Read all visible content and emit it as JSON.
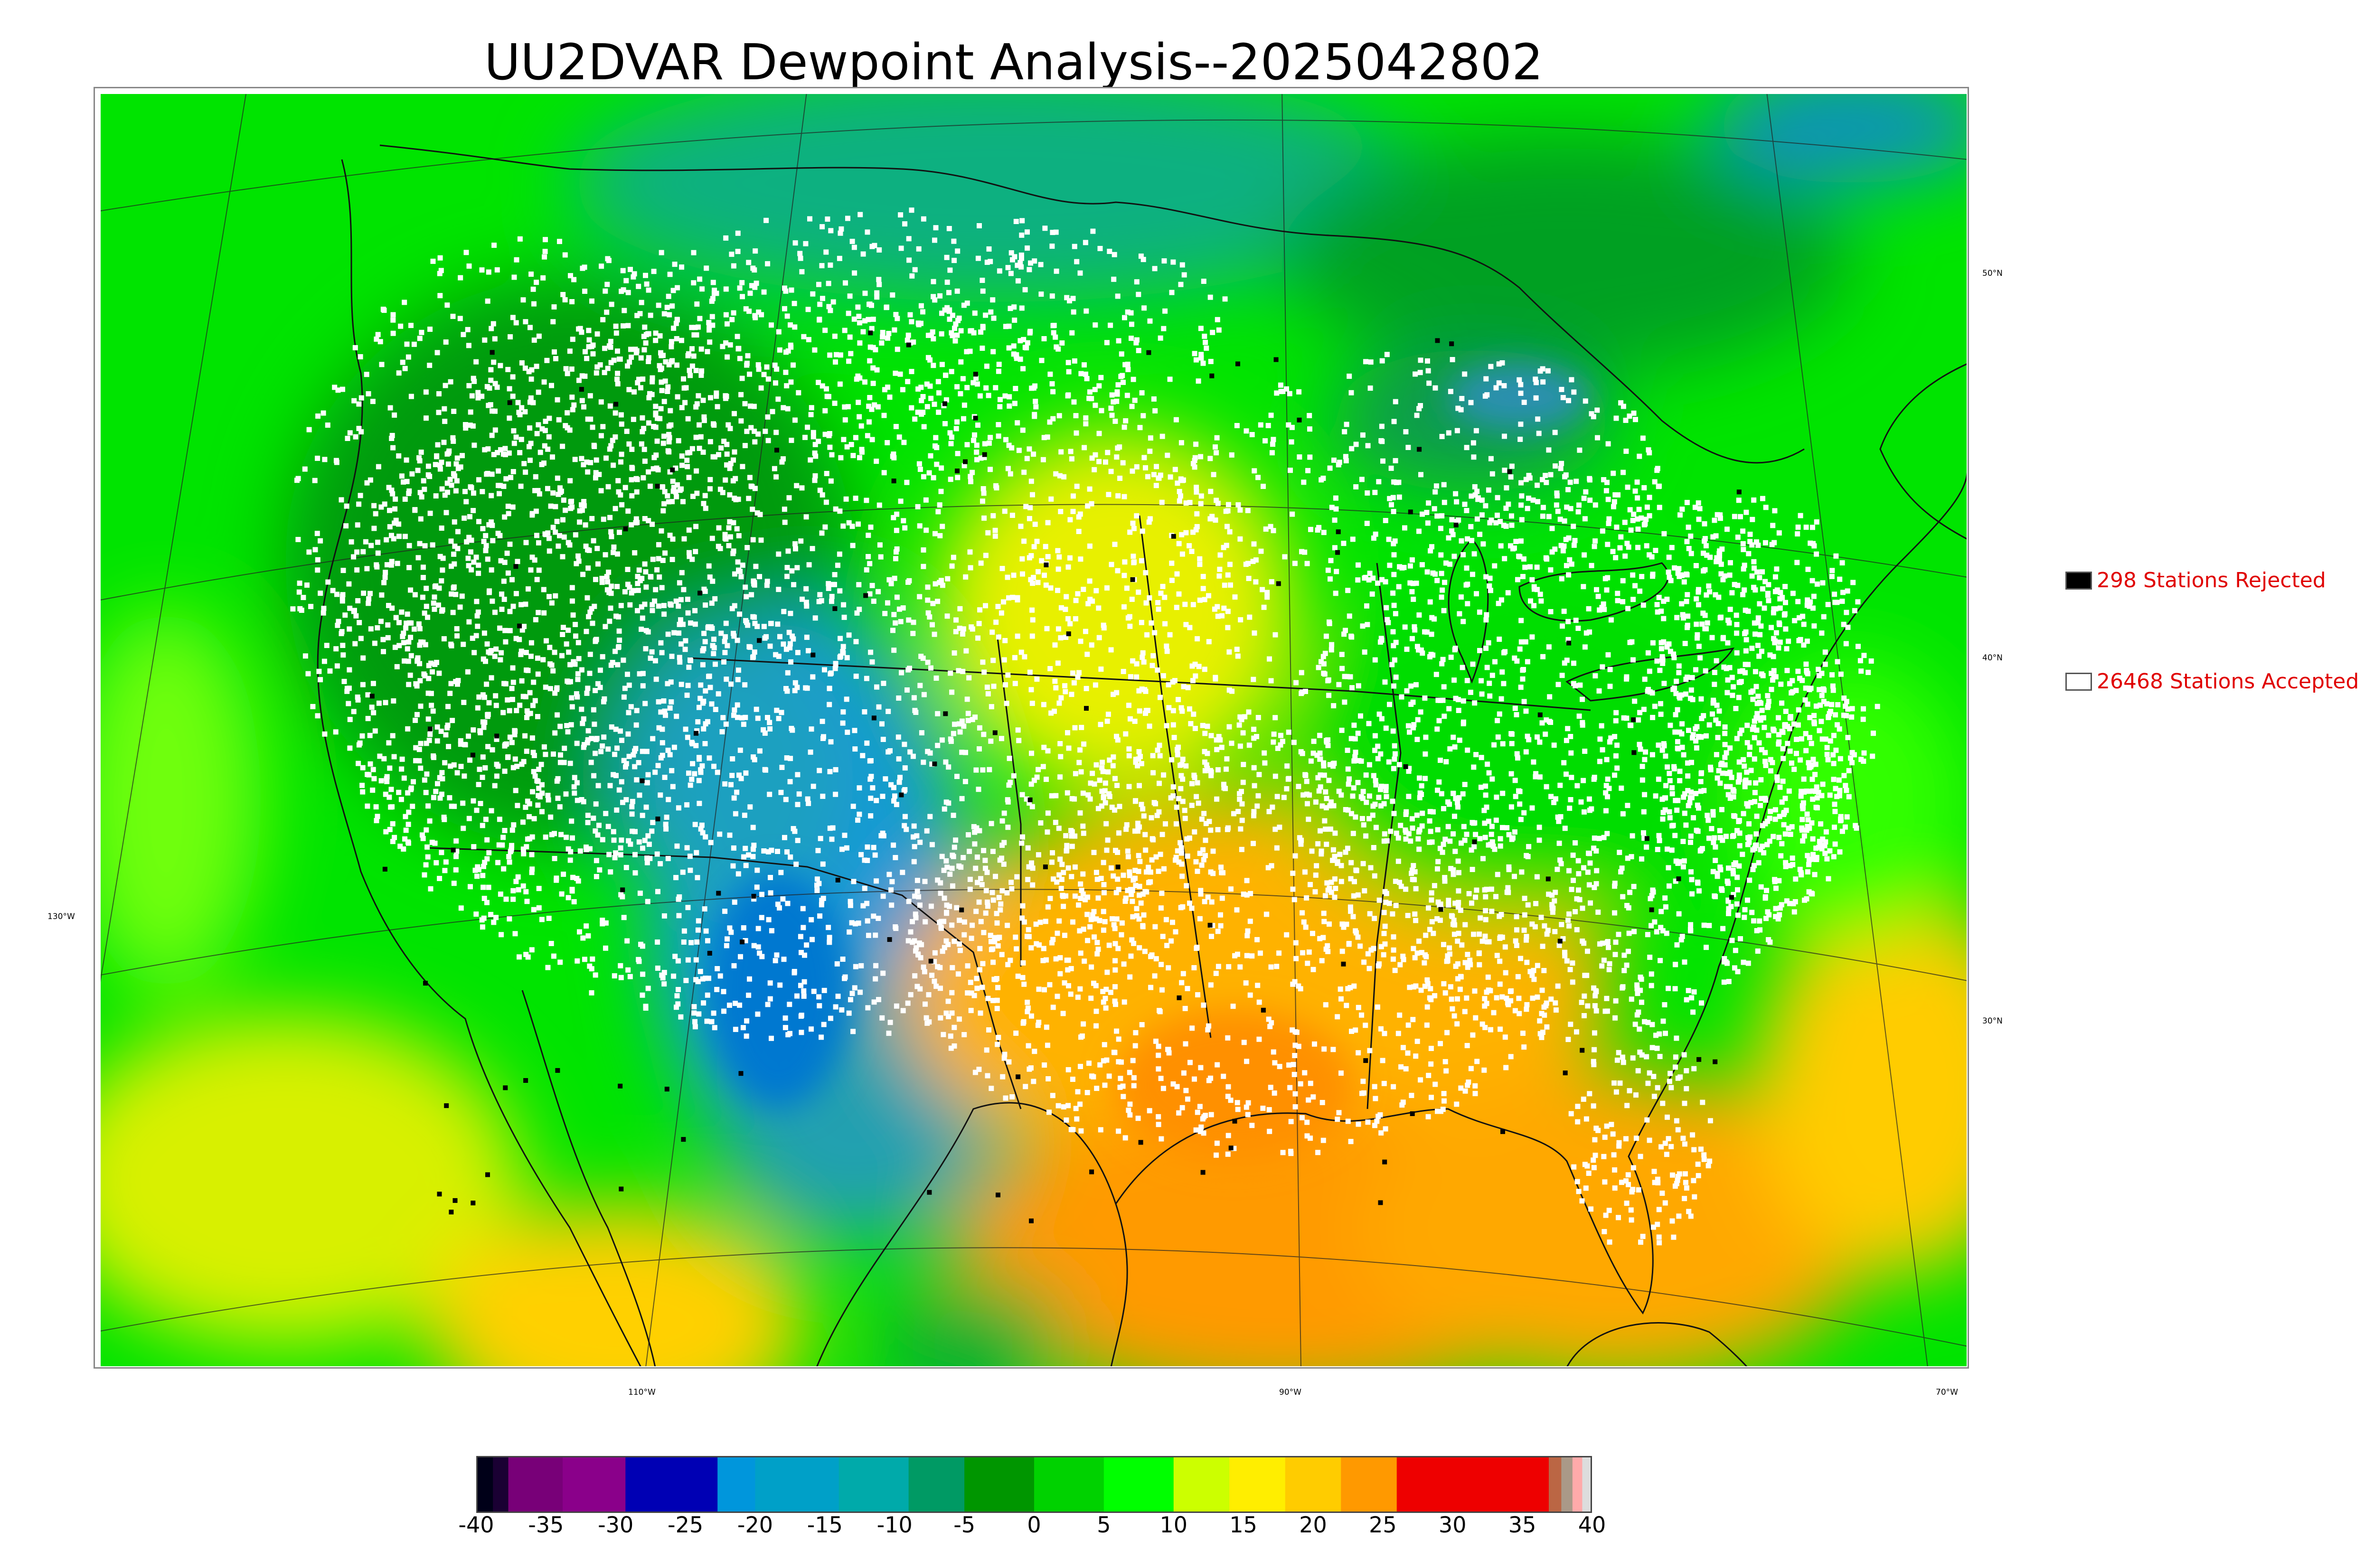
{
  "title": "UU2DVAR Dewpoint Analysis--2025042802",
  "map": {
    "latitude_labels": [
      "50°N",
      "40°N",
      "30°N"
    ],
    "longitude_labels": [
      "130°W",
      "110°W",
      "90°W",
      "70°W"
    ],
    "station_dot_colors": {
      "accepted": "#ffffff",
      "rejected": "#000000"
    }
  },
  "legend": {
    "rejected": {
      "label": "298 Stations Rejected",
      "swatch_color": "#000000"
    },
    "accepted": {
      "label": "26468 Stations Accepted",
      "swatch_color": "#ffffff"
    }
  },
  "colorbar": {
    "ticks": [
      "-40",
      "-35",
      "-30",
      "-25",
      "-20",
      "-15",
      "-10",
      "-5",
      "0",
      "5",
      "10",
      "15",
      "20",
      "25",
      "30",
      "35",
      "40"
    ],
    "min": -40,
    "max": 40,
    "segments": [
      {
        "from": -40,
        "to": -38.8,
        "color": "#000018"
      },
      {
        "from": -38.8,
        "to": -37.7,
        "color": "#1a0033"
      },
      {
        "from": -37.7,
        "to": -33.8,
        "color": "#780078"
      },
      {
        "from": -33.8,
        "to": -29.3,
        "color": "#8a008a"
      },
      {
        "from": -29.3,
        "to": -22.7,
        "color": "#0000b4"
      },
      {
        "from": -22.7,
        "to": -20,
        "color": "#0096dc"
      },
      {
        "from": -20,
        "to": -14,
        "color": "#00a0c8"
      },
      {
        "from": -14,
        "to": -9,
        "color": "#00aaaa"
      },
      {
        "from": -9,
        "to": -5,
        "color": "#009a64"
      },
      {
        "from": -5,
        "to": 0,
        "color": "#009600"
      },
      {
        "from": 0,
        "to": 5,
        "color": "#00d200"
      },
      {
        "from": 5,
        "to": 10,
        "color": "#00ff00"
      },
      {
        "from": 10,
        "to": 14,
        "color": "#ccff00"
      },
      {
        "from": 14,
        "to": 18,
        "color": "#ffee00"
      },
      {
        "from": 18,
        "to": 22,
        "color": "#ffcc00"
      },
      {
        "from": 22,
        "to": 26,
        "color": "#ff9900"
      },
      {
        "from": 26,
        "to": 36.9,
        "color": "#ee0000"
      },
      {
        "from": 36.9,
        "to": 37.8,
        "color": "#bb6644"
      },
      {
        "from": 37.8,
        "to": 38.6,
        "color": "#aa9988"
      },
      {
        "from": 38.6,
        "to": 39.3,
        "color": "#ffaaaa"
      },
      {
        "from": 39.3,
        "to": 40,
        "color": "#dddddd"
      }
    ]
  }
}
